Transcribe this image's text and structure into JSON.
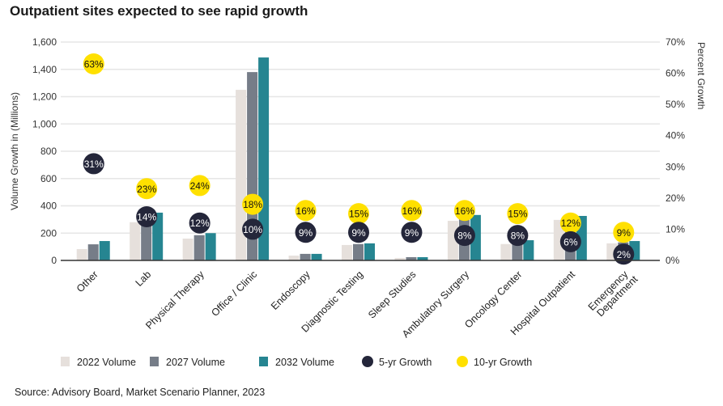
{
  "title": "Outpatient sites expected to see rapid growth",
  "source": "Source: Advisory Board, Market Scenario Planner, 2023",
  "chart_data": {
    "type": "bar",
    "ylabel": "Volume Growth in (Millions)",
    "y2label": "Percent Growth",
    "ylim": [
      0,
      1600
    ],
    "y2lim": [
      0,
      70
    ],
    "yticks": [
      "0",
      "200",
      "400",
      "600",
      "800",
      "1,000",
      "1,200",
      "1,400",
      "1,600"
    ],
    "y2ticks": [
      "0%",
      "10%",
      "20%",
      "30%",
      "40%",
      "50%",
      "60%",
      "70%"
    ],
    "grid": true,
    "legend_position": "bottom",
    "categories": [
      "Other",
      "Lab",
      "Physical Therapy",
      "Office / Clinic",
      "Endoscopy",
      "Diagnostic Testing",
      "Sleep Studies",
      "Ambulatory Surgery",
      "Oncology Center",
      "Hospital Outpatient",
      "Emergency Department"
    ],
    "series": [
      {
        "name": "2022 Volume",
        "type": "bar",
        "axis": "left",
        "color": "#e6e0dc",
        "values": [
          83,
          280,
          160,
          1250,
          35,
          113,
          18,
          290,
          120,
          297,
          125
        ]
      },
      {
        "name": "2027 Volume",
        "type": "bar",
        "axis": "left",
        "color": "#767d88",
        "values": [
          118,
          310,
          185,
          1380,
          48,
          120,
          24,
          310,
          135,
          310,
          132
        ]
      },
      {
        "name": "2032 Volume",
        "type": "bar",
        "axis": "left",
        "color": "#268591",
        "values": [
          142,
          350,
          200,
          1487,
          48,
          125,
          24,
          333,
          148,
          326,
          142
        ]
      },
      {
        "name": "5-yr Growth",
        "type": "scatter",
        "axis": "right",
        "color": "#24263a",
        "values": [
          31,
          14,
          12,
          10,
          9,
          9,
          9,
          8,
          8,
          6,
          2
        ],
        "labels": [
          "31%",
          "14%",
          "12%",
          "10%",
          "9%",
          "9%",
          "9%",
          "8%",
          "8%",
          "6%",
          "2%"
        ]
      },
      {
        "name": "10-yr Growth",
        "type": "scatter",
        "axis": "right",
        "color": "#ffe000",
        "values": [
          63,
          23,
          24,
          18,
          16,
          15,
          16,
          16,
          15,
          12,
          9
        ],
        "labels": [
          "63%",
          "23%",
          "24%",
          "18%",
          "16%",
          "15%",
          "16%",
          "16%",
          "15%",
          "12%",
          "9%"
        ]
      }
    ]
  }
}
